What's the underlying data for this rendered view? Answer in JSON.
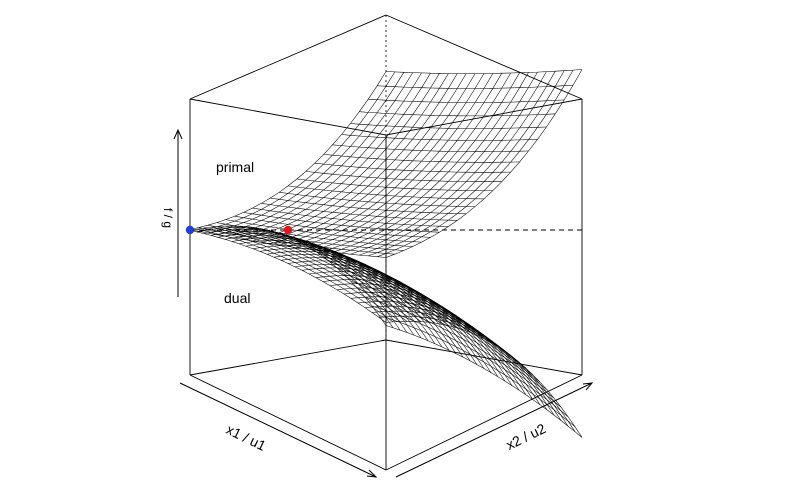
{
  "plot": {
    "labels": {
      "primal": "primal",
      "dual": "dual",
      "x_axis": "x1 / u1",
      "y_axis": "x2 / u2",
      "z_axis": "f / g"
    },
    "surfaces": {
      "primal": "upper convex mesh surface",
      "dual": "lower concave mesh surface"
    },
    "points": [
      {
        "name": "blue-point",
        "color": "#1f3fd6"
      },
      {
        "name": "red-point",
        "color": "#e0161b"
      }
    ],
    "colors": {
      "lines": "#000000",
      "background": "#ffffff"
    }
  }
}
